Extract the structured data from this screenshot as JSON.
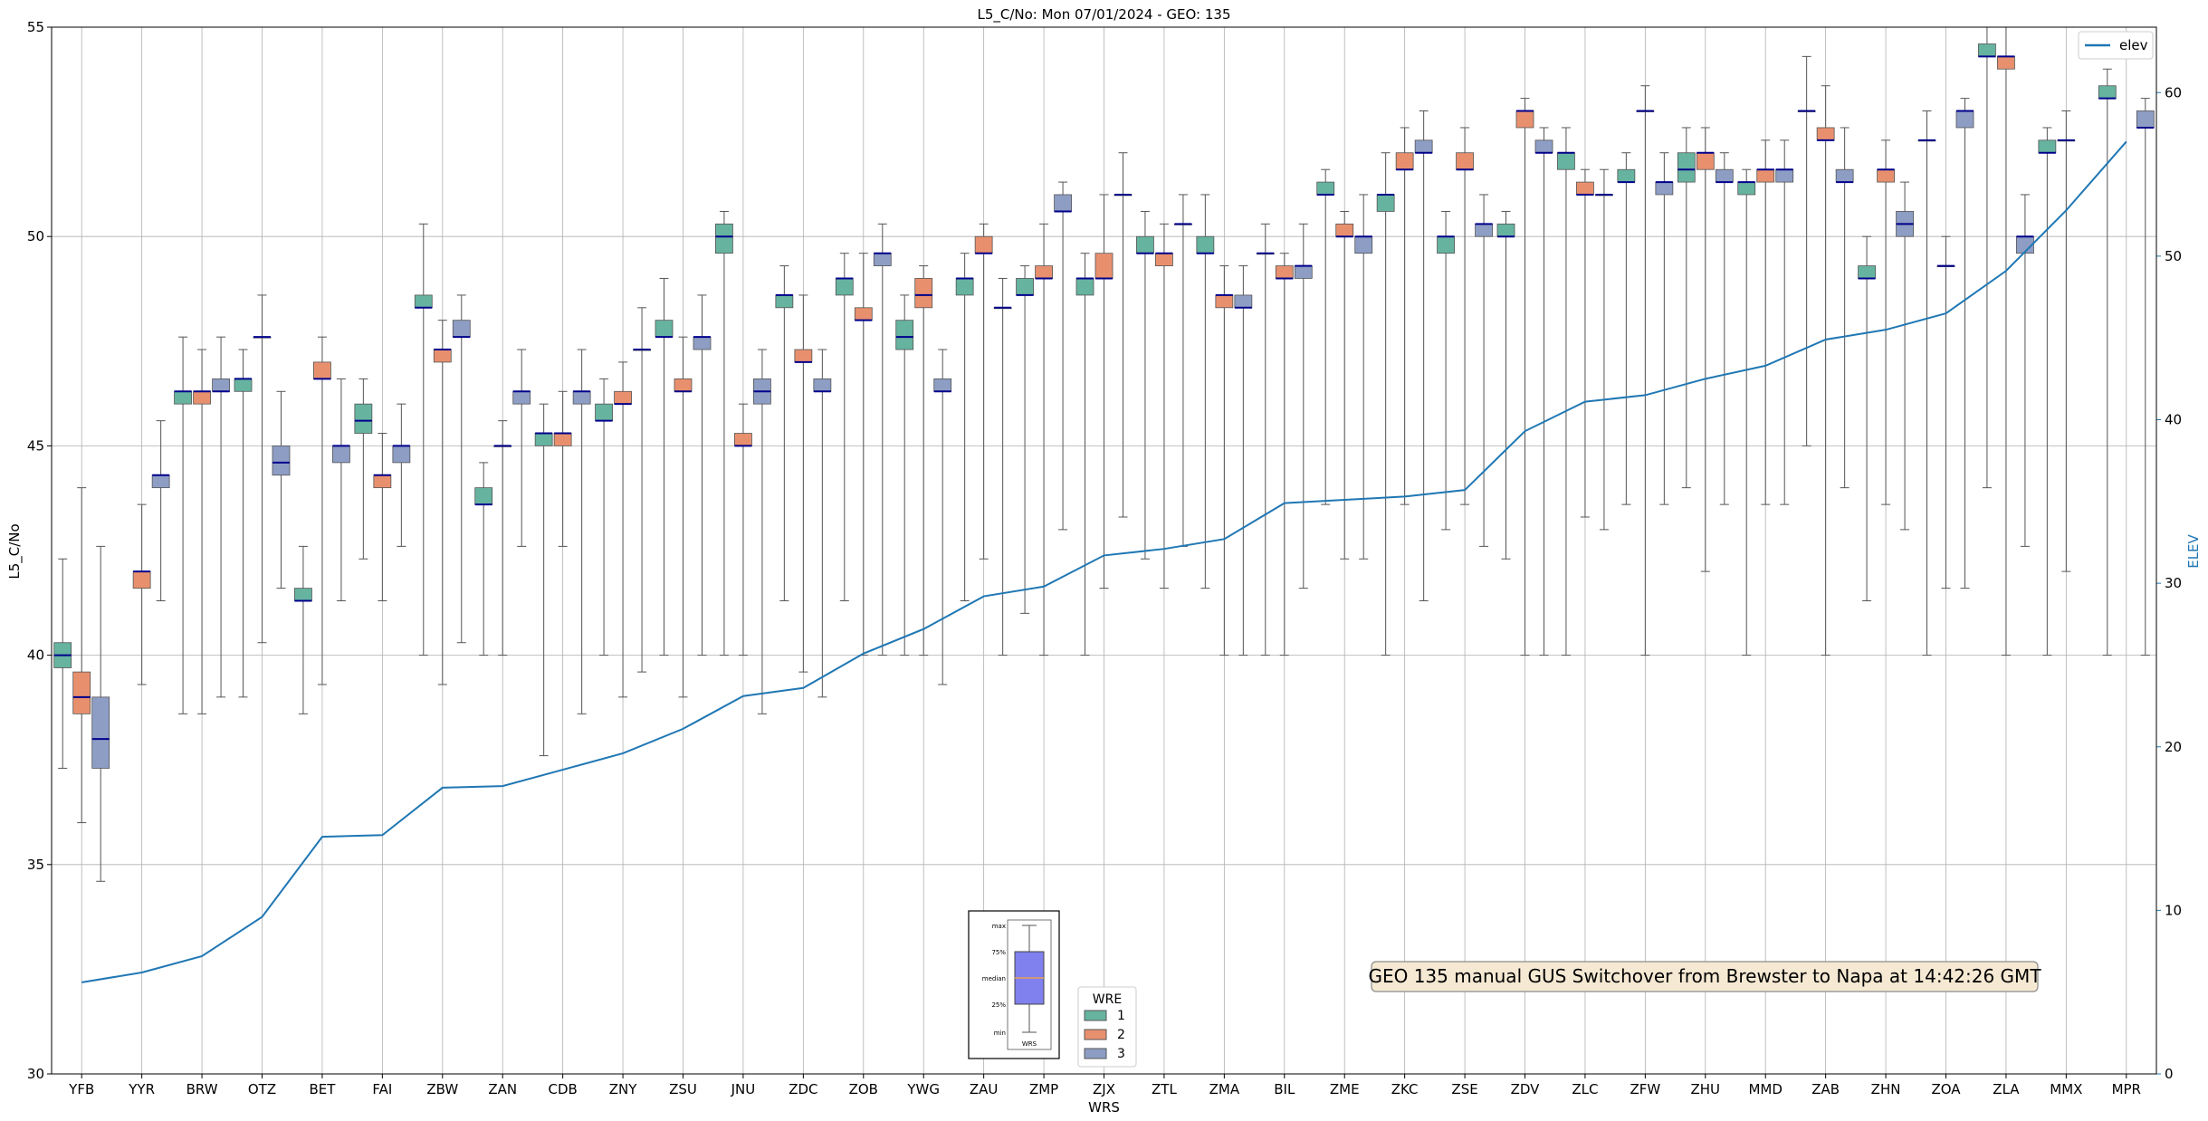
{
  "chart_data": {
    "type": "box",
    "title": "L5_C/No: Mon 07/01/2024 - GEO: 135",
    "xlabel": "WRS",
    "ylabel": "L5_C/No",
    "y2label": "ELEV",
    "ylim": [
      30,
      55
    ],
    "y2lim": [
      0,
      64
    ],
    "yticks": [
      30,
      35,
      40,
      45,
      50,
      55
    ],
    "y2ticks": [
      0,
      10,
      20,
      30,
      40,
      50,
      60
    ],
    "grid": true,
    "categories": [
      "YFB",
      "YYR",
      "BRW",
      "OTZ",
      "BET",
      "FAI",
      "ZBW",
      "ZAN",
      "CDB",
      "ZNY",
      "ZSU",
      "JNU",
      "ZDC",
      "ZOB",
      "YWG",
      "ZAU",
      "ZMP",
      "ZJX",
      "ZTL",
      "ZMA",
      "BIL",
      "ZME",
      "ZKC",
      "ZSE",
      "ZDV",
      "ZLC",
      "ZFW",
      "ZHU",
      "MMD",
      "ZAB",
      "ZHN",
      "ZOA",
      "ZLA",
      "MMX",
      "MPR"
    ],
    "wre_colors": {
      "1": "#66b3a0",
      "2": "#e8906e",
      "3": "#8d9dc4"
    },
    "median_color": "#00008b",
    "boxes": [
      [
        [
          37.3,
          39.7,
          40.0,
          40.3,
          42.3
        ],
        [
          36.0,
          38.6,
          39.0,
          39.6,
          44.0
        ],
        [
          34.6,
          37.3,
          38.0,
          39.0,
          42.6
        ]
      ],
      [
        null,
        [
          39.3,
          41.6,
          42.0,
          42.0,
          43.6
        ],
        [
          41.3,
          44.0,
          44.3,
          44.3,
          45.6
        ]
      ],
      [
        [
          38.6,
          46.0,
          46.3,
          46.3,
          47.6
        ],
        [
          38.6,
          46.0,
          46.3,
          46.3,
          47.3
        ],
        [
          39.0,
          46.3,
          46.3,
          46.6,
          47.6
        ]
      ],
      [
        [
          39.0,
          46.3,
          46.6,
          46.6,
          47.3
        ],
        [
          40.3,
          47.6,
          47.6,
          47.6,
          48.6
        ],
        [
          41.6,
          44.3,
          44.6,
          45.0,
          46.3
        ]
      ],
      [
        [
          38.6,
          41.3,
          41.3,
          41.6,
          42.6
        ],
        [
          39.3,
          46.6,
          46.6,
          47.0,
          47.6
        ],
        [
          41.3,
          44.6,
          45.0,
          45.0,
          46.6
        ]
      ],
      [
        [
          42.3,
          45.3,
          45.6,
          46.0,
          46.6
        ],
        [
          41.3,
          44.0,
          44.3,
          44.3,
          45.3
        ],
        [
          42.6,
          44.6,
          45.0,
          45.0,
          46.0
        ]
      ],
      [
        [
          40.0,
          48.3,
          48.3,
          48.6,
          50.3
        ],
        [
          39.3,
          47.0,
          47.3,
          47.3,
          48.0
        ],
        [
          40.3,
          47.6,
          47.6,
          48.0,
          48.6
        ]
      ],
      [
        [
          40.0,
          43.6,
          43.6,
          44.0,
          44.6
        ],
        [
          40.0,
          45.0,
          45.0,
          45.0,
          45.6
        ],
        [
          42.6,
          46.0,
          46.3,
          46.3,
          47.3
        ]
      ],
      [
        [
          37.6,
          45.0,
          45.3,
          45.3,
          46.0
        ],
        [
          42.6,
          45.0,
          45.3,
          45.3,
          46.3
        ],
        [
          38.6,
          46.0,
          46.3,
          46.3,
          47.3
        ]
      ],
      [
        [
          40.0,
          45.6,
          45.6,
          46.0,
          46.6
        ],
        [
          39.0,
          46.0,
          46.0,
          46.3,
          47.0
        ],
        [
          39.6,
          47.3,
          47.3,
          47.3,
          48.3
        ]
      ],
      [
        [
          40.0,
          47.6,
          47.6,
          48.0,
          49.0
        ],
        [
          39.0,
          46.3,
          46.3,
          46.6,
          47.6
        ],
        [
          40.0,
          47.3,
          47.6,
          47.6,
          48.6
        ]
      ],
      [
        [
          40.0,
          49.6,
          50.0,
          50.3,
          50.6
        ],
        [
          40.0,
          45.0,
          45.0,
          45.3,
          46.0
        ],
        [
          38.6,
          46.0,
          46.3,
          46.6,
          47.3
        ]
      ],
      [
        [
          41.3,
          48.3,
          48.6,
          48.6,
          49.3
        ],
        [
          39.6,
          47.0,
          47.0,
          47.3,
          48.6
        ],
        [
          39.0,
          46.3,
          46.3,
          46.6,
          47.3
        ]
      ],
      [
        [
          41.3,
          48.6,
          49.0,
          49.0,
          49.6
        ],
        [
          40.0,
          48.0,
          48.0,
          48.3,
          49.6
        ],
        [
          40.0,
          49.3,
          49.6,
          49.6,
          50.3
        ]
      ],
      [
        [
          40.0,
          47.3,
          47.6,
          48.0,
          48.6
        ],
        [
          40.0,
          48.3,
          48.6,
          49.0,
          49.3
        ],
        [
          39.3,
          46.3,
          46.3,
          46.6,
          47.3
        ]
      ],
      [
        [
          41.3,
          48.6,
          49.0,
          49.0,
          49.6
        ],
        [
          42.3,
          49.6,
          49.6,
          50.0,
          50.3
        ],
        [
          40.0,
          48.3,
          48.3,
          48.3,
          49.0
        ]
      ],
      [
        [
          41.0,
          48.6,
          48.6,
          49.0,
          49.3
        ],
        [
          40.0,
          49.0,
          49.0,
          49.3,
          50.3
        ],
        [
          43.0,
          50.6,
          50.6,
          51.0,
          51.3
        ]
      ],
      [
        [
          40.0,
          48.6,
          49.0,
          49.0,
          49.6
        ],
        [
          41.6,
          49.0,
          49.0,
          49.6,
          51.0
        ],
        [
          43.3,
          51.0,
          51.0,
          51.0,
          52.0
        ]
      ],
      [
        [
          42.3,
          49.6,
          49.6,
          50.0,
          50.6
        ],
        [
          41.6,
          49.3,
          49.6,
          49.6,
          50.3
        ],
        [
          42.6,
          50.3,
          50.3,
          50.3,
          51.0
        ]
      ],
      [
        [
          41.6,
          49.6,
          49.6,
          50.0,
          51.0
        ],
        [
          40.0,
          48.3,
          48.6,
          48.6,
          49.3
        ],
        [
          40.0,
          48.3,
          48.3,
          48.6,
          49.3
        ]
      ],
      [
        [
          40.0,
          49.6,
          49.6,
          49.6,
          50.3
        ],
        [
          40.0,
          49.0,
          49.0,
          49.3,
          49.6
        ],
        [
          41.6,
          49.0,
          49.3,
          49.3,
          50.3
        ]
      ],
      [
        [
          43.6,
          51.0,
          51.0,
          51.3,
          51.6
        ],
        [
          42.3,
          50.0,
          50.0,
          50.3,
          50.6
        ],
        [
          42.3,
          49.6,
          50.0,
          50.0,
          51.0
        ]
      ],
      [
        [
          40.0,
          50.6,
          51.0,
          51.0,
          52.0
        ],
        [
          43.6,
          51.6,
          51.6,
          52.0,
          52.6
        ],
        [
          41.3,
          52.0,
          52.0,
          52.3,
          53.0
        ]
      ],
      [
        [
          43.0,
          49.6,
          50.0,
          50.0,
          50.6
        ],
        [
          43.6,
          51.6,
          51.6,
          52.0,
          52.6
        ],
        [
          42.6,
          50.0,
          50.3,
          50.3,
          51.0
        ]
      ],
      [
        [
          42.3,
          50.0,
          50.0,
          50.3,
          50.6
        ],
        [
          40.0,
          52.6,
          53.0,
          53.0,
          53.3
        ],
        [
          40.0,
          52.0,
          52.0,
          52.3,
          52.6
        ]
      ],
      [
        [
          40.0,
          51.6,
          52.0,
          52.0,
          52.6
        ],
        [
          43.3,
          51.0,
          51.0,
          51.3,
          51.6
        ],
        [
          43.0,
          51.0,
          51.0,
          51.0,
          51.6
        ]
      ],
      [
        [
          43.6,
          51.3,
          51.3,
          51.6,
          52.0
        ],
        [
          40.0,
          53.0,
          53.0,
          53.0,
          53.6
        ],
        [
          43.6,
          51.0,
          51.3,
          51.3,
          52.0
        ]
      ],
      [
        [
          44.0,
          51.3,
          51.6,
          52.0,
          52.6
        ],
        [
          42.0,
          51.6,
          52.0,
          52.0,
          52.6
        ],
        [
          43.6,
          51.3,
          51.3,
          51.6,
          52.0
        ]
      ],
      [
        [
          40.0,
          51.0,
          51.3,
          51.3,
          51.6
        ],
        [
          43.6,
          51.3,
          51.6,
          51.6,
          52.3
        ],
        [
          43.6,
          51.3,
          51.6,
          51.6,
          52.3
        ]
      ],
      [
        [
          45.0,
          53.0,
          53.0,
          53.0,
          54.3
        ],
        [
          40.0,
          52.3,
          52.3,
          52.6,
          53.6
        ],
        [
          44.0,
          51.3,
          51.3,
          51.6,
          52.6
        ]
      ],
      [
        [
          41.3,
          49.0,
          49.0,
          49.3,
          50.0
        ],
        [
          43.6,
          51.3,
          51.6,
          51.6,
          52.3
        ],
        [
          43.0,
          50.0,
          50.3,
          50.6,
          51.3
        ]
      ],
      [
        [
          40.0,
          52.3,
          52.3,
          52.3,
          53.0
        ],
        [
          41.6,
          49.3,
          49.3,
          49.3,
          50.0
        ],
        [
          41.6,
          52.6,
          53.0,
          53.0,
          53.3
        ]
      ],
      [
        [
          44.0,
          54.3,
          54.3,
          54.6,
          55.0
        ],
        [
          40.0,
          54.0,
          54.3,
          54.3,
          55.0
        ],
        [
          42.6,
          49.6,
          50.0,
          50.0,
          51.0
        ]
      ],
      [
        [
          40.0,
          52.0,
          52.0,
          52.3,
          52.6
        ],
        [
          42.0,
          52.3,
          52.3,
          52.3,
          53.0
        ],
        null
      ],
      [
        [
          40.0,
          53.3,
          53.3,
          53.6,
          54.0
        ],
        null,
        [
          40.0,
          52.6,
          52.6,
          53.0,
          53.3
        ]
      ]
    ],
    "series": [
      {
        "name": "elev",
        "axis": "right",
        "color": "#1f77b4",
        "values": [
          5.6,
          6.2,
          7.2,
          9.6,
          14.5,
          14.6,
          17.5,
          17.6,
          18.6,
          19.6,
          21.1,
          23.1,
          23.6,
          25.7,
          27.2,
          29.2,
          29.8,
          31.7,
          32.1,
          32.7,
          34.9,
          35.1,
          35.3,
          35.7,
          39.3,
          41.1,
          41.5,
          42.5,
          43.3,
          44.9,
          45.5,
          46.5,
          49.1,
          52.8,
          57.0
        ]
      }
    ],
    "legend": {
      "entries": [
        "elev"
      ],
      "placement": "top-right"
    },
    "wre_legend": {
      "title": "WRE",
      "entries": [
        "1",
        "2",
        "3"
      ],
      "placement": "bottom-center"
    },
    "boxplot_key": {
      "labels": [
        "max",
        "75%",
        "median",
        "25%",
        "min"
      ],
      "xlabel": "WRS"
    },
    "annotation": "GEO 135 manual GUS Switchover from Brewster to Napa at 14:42:26 GMT"
  }
}
